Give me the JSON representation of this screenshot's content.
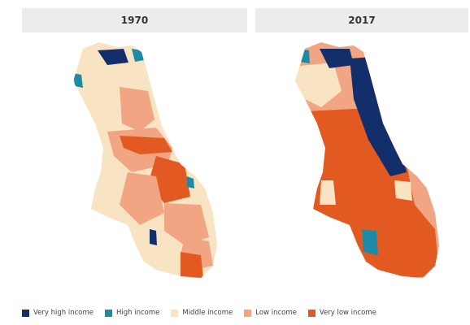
{
  "panels": [
    {
      "title": "1970"
    },
    {
      "title": "2017"
    }
  ],
  "legend": [
    {
      "label": "Very high income",
      "color": "#132f6b"
    },
    {
      "label": "High income",
      "color": "#1f8aa6"
    },
    {
      "label": "Middle income",
      "color": "#f8e3c2"
    },
    {
      "label": "Low income",
      "color": "#f2a583"
    },
    {
      "label": "Very low income",
      "color": "#e25a22"
    }
  ]
}
